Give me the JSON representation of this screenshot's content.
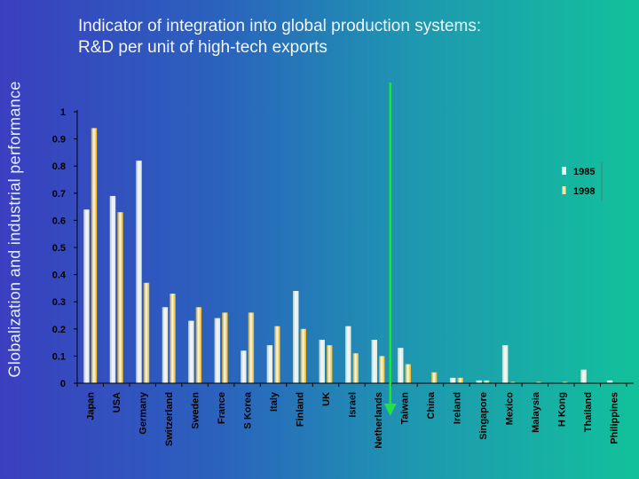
{
  "side_title": "Globalization and industrial performance",
  "title_line1": "Indicator of integration into global production systems:",
  "title_line2": "R&D per unit of high-tech exports",
  "colors": {
    "series1": "#dde8dc",
    "series2": "#f0b400",
    "axis": "#000000",
    "marker": "#22e04a",
    "text": "#000000"
  },
  "chart_data": {
    "type": "bar",
    "categories": [
      "Japan",
      "USA",
      "Germany",
      "Switzerland",
      "Sweden",
      "France",
      "S Korea",
      "Italy",
      "Finland",
      "UK",
      "Israel",
      "Netherlands",
      "Taiwan",
      "China",
      "Ireland",
      "Singapore",
      "Mexico",
      "Malaysia",
      "H Kong",
      "Thailand",
      "Philippines"
    ],
    "series": [
      {
        "name": "1985",
        "values": [
          0.64,
          0.69,
          0.82,
          0.28,
          0.23,
          0.24,
          0.12,
          0.14,
          0.34,
          0.16,
          0.21,
          0.16,
          0.13,
          0.0,
          0.02,
          0.01,
          0.14,
          0.0,
          0.0,
          0.05,
          0.01
        ]
      },
      {
        "name": "1998",
        "values": [
          0.94,
          0.63,
          0.37,
          0.33,
          0.28,
          0.26,
          0.26,
          0.21,
          0.2,
          0.14,
          0.11,
          0.1,
          0.07,
          0.04,
          0.02,
          0.01,
          0.005,
          0.005,
          0.005,
          0.0,
          0.0
        ]
      }
    ],
    "ylim": [
      0,
      1
    ],
    "yticks": [
      "0",
      "0.1",
      "0.2",
      "0.3",
      "0.4",
      "0.5",
      "0.6",
      "0.7",
      "0.8",
      "0.9",
      "1"
    ],
    "legend_position": "right",
    "grid": false,
    "marker_after_category": "Netherlands"
  }
}
